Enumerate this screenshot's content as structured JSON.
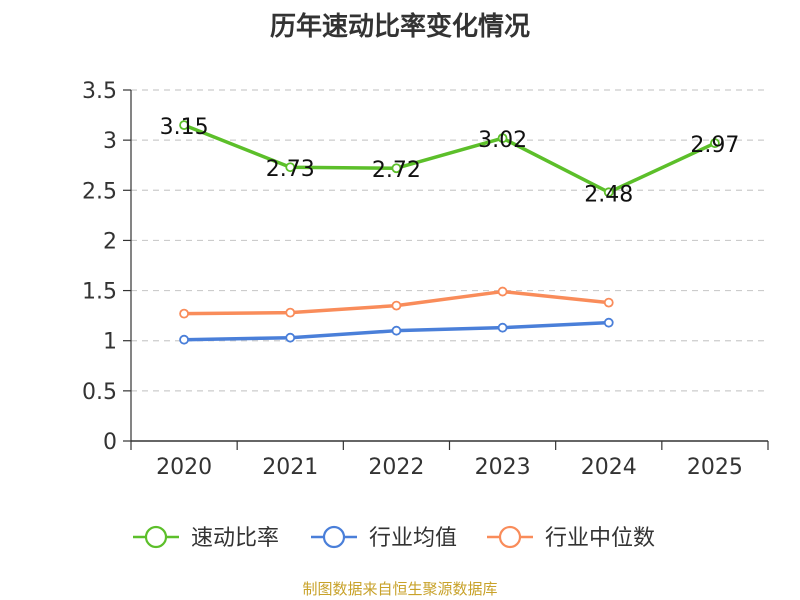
{
  "chart_data": {
    "type": "line",
    "title": "历年速动比率变化情况",
    "categories": [
      "2020",
      "2021",
      "2022",
      "2023",
      "2024",
      "2025"
    ],
    "ylim": [
      0,
      3.5
    ],
    "yticks": [
      "0",
      "0.5",
      "1",
      "1.5",
      "2",
      "2.5",
      "3",
      "3.5"
    ],
    "grid": true,
    "legend_position": "bottom",
    "series": [
      {
        "name": "速动比率",
        "color": "#5cbf2a",
        "values": [
          3.15,
          2.73,
          2.72,
          3.02,
          2.48,
          2.97
        ],
        "labels": [
          "3.15",
          "2.73",
          "2.72",
          "3.02",
          "2.48",
          "2.97"
        ],
        "show_labels": true
      },
      {
        "name": "行业均值",
        "color": "#4a7fd9",
        "values": [
          1.01,
          1.03,
          1.1,
          1.13,
          1.18,
          null
        ],
        "show_labels": false
      },
      {
        "name": "行业中位数",
        "color": "#f98c5a",
        "values": [
          1.27,
          1.28,
          1.35,
          1.49,
          1.38,
          null
        ],
        "show_labels": false
      }
    ]
  },
  "source": "制图数据来自恒生聚源数据库"
}
